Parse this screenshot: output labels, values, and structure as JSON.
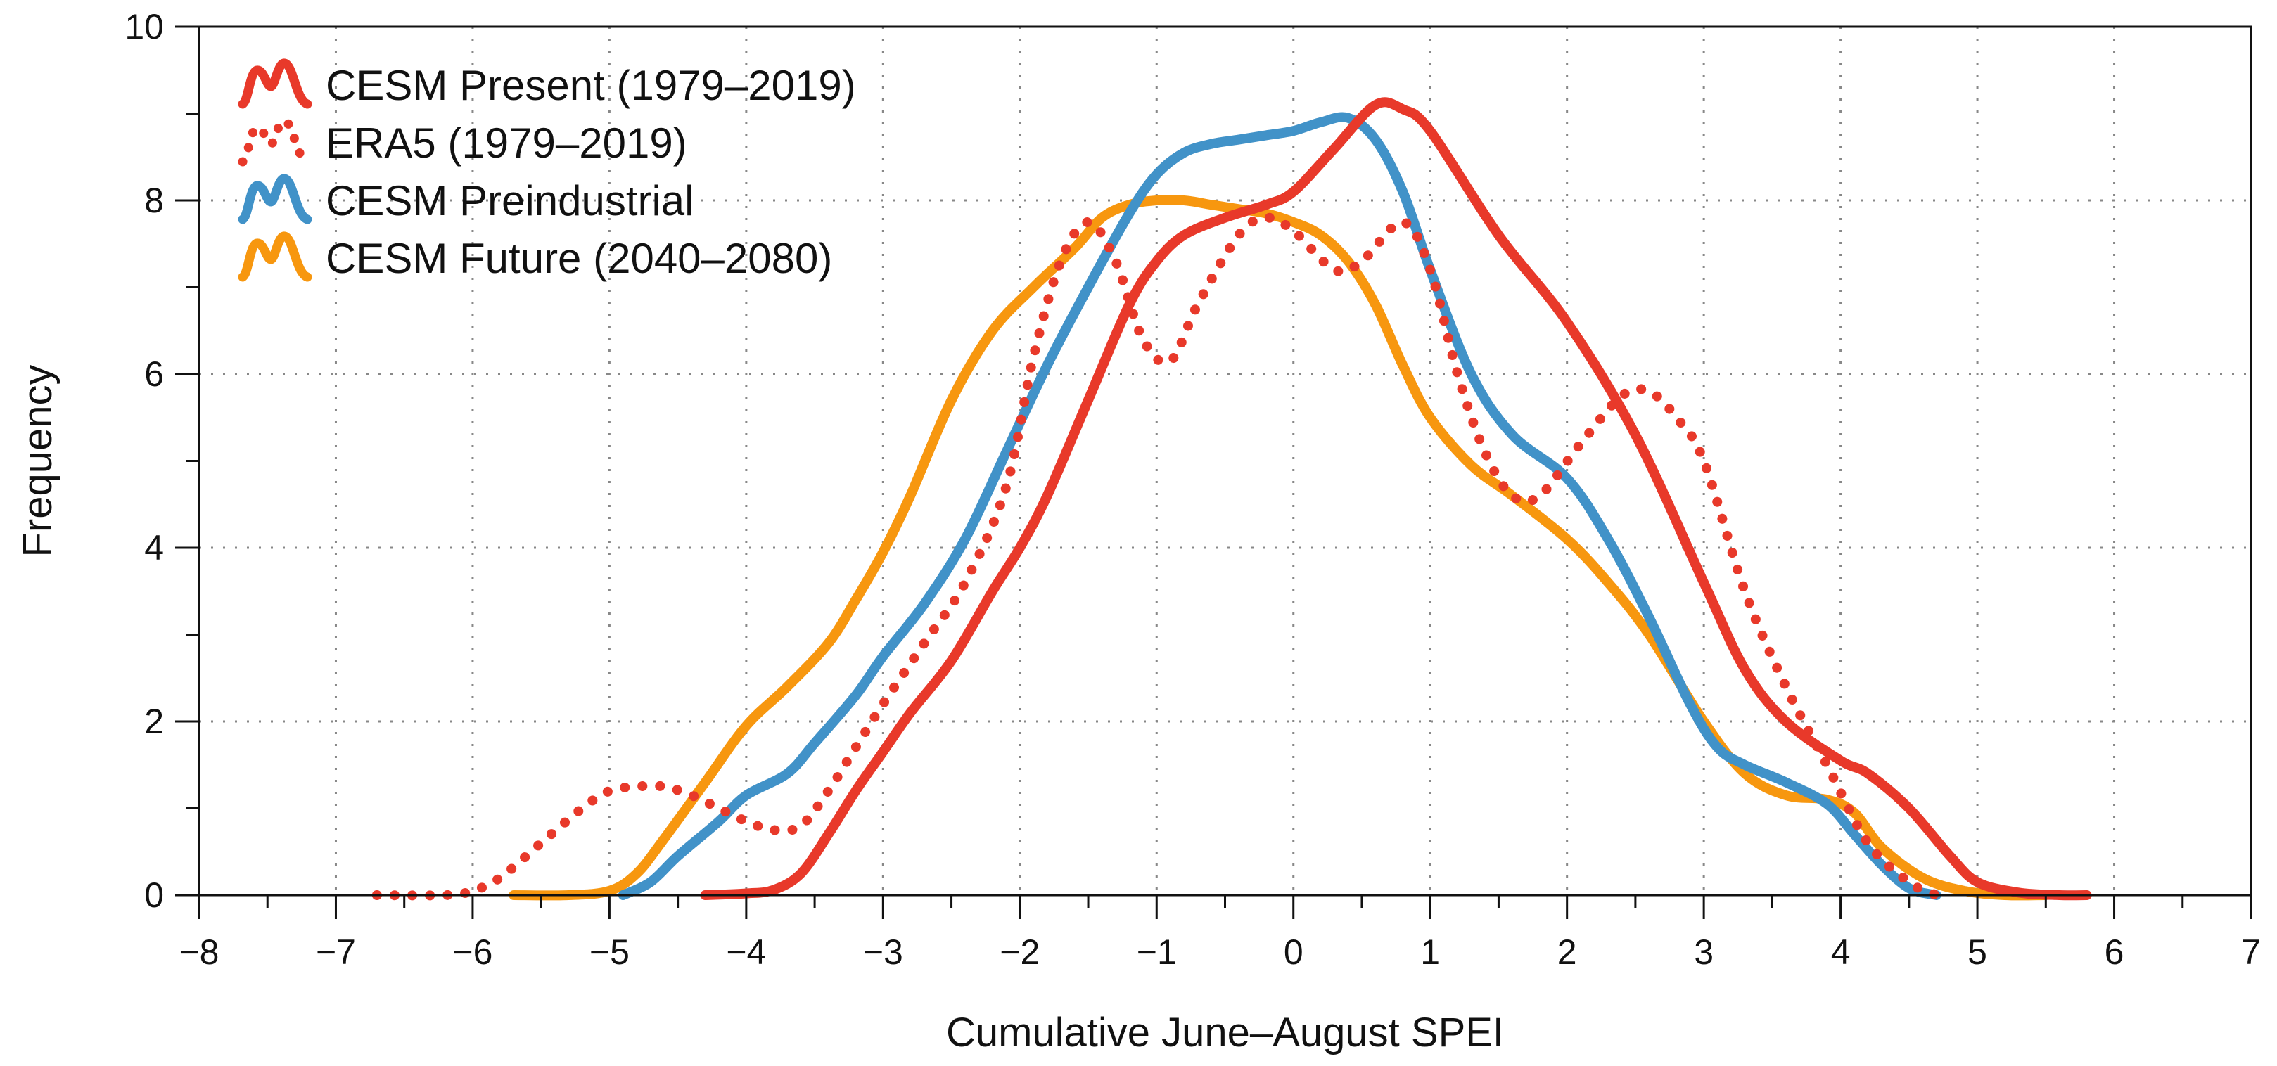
{
  "chart_data": {
    "type": "line",
    "title": "",
    "xlabel": "Cumulative June–August SPEI",
    "ylabel": "Frequency",
    "xlim": [
      -8,
      7
    ],
    "ylim": [
      0,
      10
    ],
    "xticks": [
      -8,
      -7,
      -6,
      -5,
      -4,
      -3,
      -2,
      -1,
      0,
      1,
      2,
      3,
      4,
      5,
      6,
      7
    ],
    "xtick_labels": [
      "−8",
      "−7",
      "−6",
      "−5",
      "−4",
      "−3",
      "−2",
      "−1",
      "0",
      "1",
      "2",
      "3",
      "4",
      "5",
      "6",
      "7"
    ],
    "yticks": [
      0,
      2,
      4,
      6,
      8,
      10
    ],
    "ytick_labels": [
      "0",
      "2",
      "4",
      "6",
      "8",
      "10"
    ],
    "grid": true,
    "legend_position": "top-left",
    "series": [
      {
        "name": "CESM Present (1979–2019)",
        "color": "#e8392a",
        "style": "solid",
        "x": [
          -4.3,
          -4.0,
          -3.8,
          -3.6,
          -3.4,
          -3.2,
          -3.0,
          -2.8,
          -2.5,
          -2.2,
          -2.0,
          -1.8,
          -1.5,
          -1.2,
          -1.0,
          -0.8,
          -0.5,
          -0.2,
          0.0,
          0.3,
          0.6,
          0.8,
          1.0,
          1.5,
          2.0,
          2.5,
          3.0,
          3.3,
          3.6,
          4.0,
          4.2,
          4.5,
          4.8,
          5.0,
          5.3,
          5.6,
          5.8
        ],
        "y": [
          0.0,
          0.02,
          0.06,
          0.25,
          0.7,
          1.2,
          1.65,
          2.1,
          2.7,
          3.5,
          4.0,
          4.6,
          5.7,
          6.8,
          7.3,
          7.6,
          7.8,
          7.95,
          8.1,
          8.6,
          9.1,
          9.05,
          8.8,
          7.6,
          6.6,
          5.3,
          3.6,
          2.6,
          2.0,
          1.55,
          1.4,
          1.0,
          0.45,
          0.15,
          0.03,
          0.0,
          0.0
        ]
      },
      {
        "name": "ERA5 (1979–2019)",
        "color": "#e8392a",
        "style": "dotted",
        "x": [
          -6.7,
          -6.2,
          -6.0,
          -5.8,
          -5.5,
          -5.2,
          -5.0,
          -4.8,
          -4.6,
          -4.4,
          -4.2,
          -4.0,
          -3.8,
          -3.6,
          -3.4,
          -3.2,
          -3.0,
          -2.7,
          -2.4,
          -2.1,
          -1.9,
          -1.7,
          -1.5,
          -1.3,
          -1.1,
          -0.9,
          -0.7,
          -0.4,
          -0.2,
          0.0,
          0.3,
          0.5,
          0.8,
          1.0,
          1.2,
          1.4,
          1.6,
          1.8,
          2.1,
          2.4,
          2.6,
          2.8,
          3.0,
          3.3,
          3.6,
          3.9,
          4.2,
          4.5,
          4.7
        ],
        "y": [
          0.0,
          0.0,
          0.05,
          0.2,
          0.6,
          1.0,
          1.2,
          1.25,
          1.25,
          1.15,
          1.0,
          0.85,
          0.75,
          0.8,
          1.2,
          1.7,
          2.2,
          2.9,
          3.6,
          4.7,
          6.2,
          7.3,
          7.75,
          7.3,
          6.4,
          6.15,
          6.8,
          7.6,
          7.8,
          7.65,
          7.2,
          7.3,
          7.75,
          7.2,
          6.0,
          5.1,
          4.6,
          4.6,
          5.2,
          5.75,
          5.8,
          5.5,
          5.0,
          3.5,
          2.4,
          1.5,
          0.6,
          0.15,
          0.0
        ]
      },
      {
        "name": "CESM Preindustrial",
        "color": "#4192c8",
        "style": "solid",
        "x": [
          -4.9,
          -4.7,
          -4.5,
          -4.2,
          -4.0,
          -3.7,
          -3.5,
          -3.2,
          -3.0,
          -2.7,
          -2.4,
          -2.1,
          -1.8,
          -1.5,
          -1.2,
          -1.0,
          -0.8,
          -0.6,
          -0.4,
          -0.2,
          0.0,
          0.2,
          0.4,
          0.6,
          0.8,
          1.0,
          1.3,
          1.6,
          2.0,
          2.3,
          2.6,
          2.9,
          3.1,
          3.3,
          3.6,
          3.9,
          4.1,
          4.3,
          4.5,
          4.7
        ],
        "y": [
          0.0,
          0.15,
          0.45,
          0.85,
          1.15,
          1.4,
          1.75,
          2.3,
          2.75,
          3.35,
          4.1,
          5.1,
          6.1,
          7.0,
          7.85,
          8.3,
          8.55,
          8.65,
          8.7,
          8.75,
          8.8,
          8.9,
          8.95,
          8.7,
          8.1,
          7.2,
          6.0,
          5.3,
          4.8,
          4.1,
          3.2,
          2.2,
          1.7,
          1.5,
          1.3,
          1.05,
          0.7,
          0.35,
          0.08,
          0.0
        ]
      },
      {
        "name": "CESM Future (2040–2080)",
        "color": "#f7970f",
        "style": "solid",
        "x": [
          -5.7,
          -5.3,
          -5.0,
          -4.8,
          -4.6,
          -4.3,
          -4.0,
          -3.7,
          -3.4,
          -3.2,
          -3.0,
          -2.8,
          -2.5,
          -2.2,
          -1.9,
          -1.6,
          -1.4,
          -1.2,
          -1.0,
          -0.8,
          -0.6,
          -0.4,
          -0.2,
          0.0,
          0.2,
          0.4,
          0.6,
          0.8,
          1.0,
          1.3,
          1.6,
          2.0,
          2.3,
          2.6,
          3.0,
          3.3,
          3.6,
          3.9,
          4.1,
          4.3,
          4.6,
          4.9,
          5.2,
          5.5
        ],
        "y": [
          0.0,
          0.0,
          0.05,
          0.25,
          0.65,
          1.3,
          1.95,
          2.4,
          2.9,
          3.4,
          3.95,
          4.6,
          5.7,
          6.5,
          7.0,
          7.45,
          7.8,
          7.95,
          8.0,
          8.0,
          7.95,
          7.9,
          7.85,
          7.75,
          7.6,
          7.3,
          6.8,
          6.1,
          5.5,
          4.95,
          4.6,
          4.1,
          3.6,
          3.0,
          2.0,
          1.4,
          1.15,
          1.1,
          0.95,
          0.55,
          0.2,
          0.05,
          0.0,
          0.0
        ]
      }
    ]
  }
}
